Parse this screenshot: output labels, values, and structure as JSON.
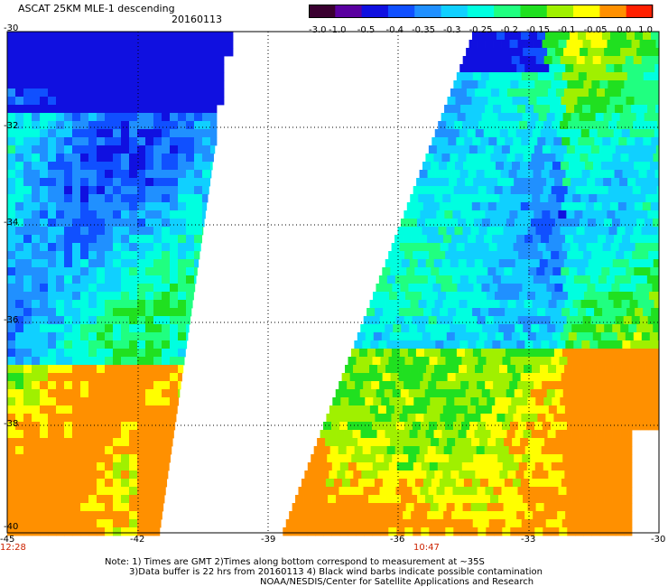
{
  "header": {
    "title": "ASCAT 25KM MLE-1 descending",
    "date": "20160113"
  },
  "colorbar": {
    "tick_labels": [
      "-3.0",
      "-1.0",
      "-0.5",
      "-0.4",
      "-0.35",
      "-0.3",
      "-0.25",
      "-0.2",
      "-0.15",
      "-0.1",
      "-0.05",
      "0.0",
      "1.0"
    ],
    "colors": [
      "#3a0030",
      "#5a00a0",
      "#1010e0",
      "#1050ff",
      "#2090ff",
      "#10d0ff",
      "#00ffe0",
      "#20ff80",
      "#20e020",
      "#a0f000",
      "#ffff00",
      "#ff9000",
      "#ff2000"
    ]
  },
  "axes": {
    "lat_labels": [
      "-30",
      "-32",
      "-34",
      "-36",
      "-38",
      "-40"
    ],
    "lon_labels": [
      "-45",
      "-42",
      "-39",
      "-36",
      "-33",
      "-30"
    ]
  },
  "time_labels": [
    "12:28",
    "10:47"
  ],
  "notes": [
    "Note: 1) Times are GMT 2)Times along bottom correspond to measurement at ~35S",
    "3)Data buffer is 22 hrs from 20160113 4) Black wind barbs indicate possible contamination",
    "NOAA/NESDIS/Center for Satellite Applications and Research"
  ]
}
